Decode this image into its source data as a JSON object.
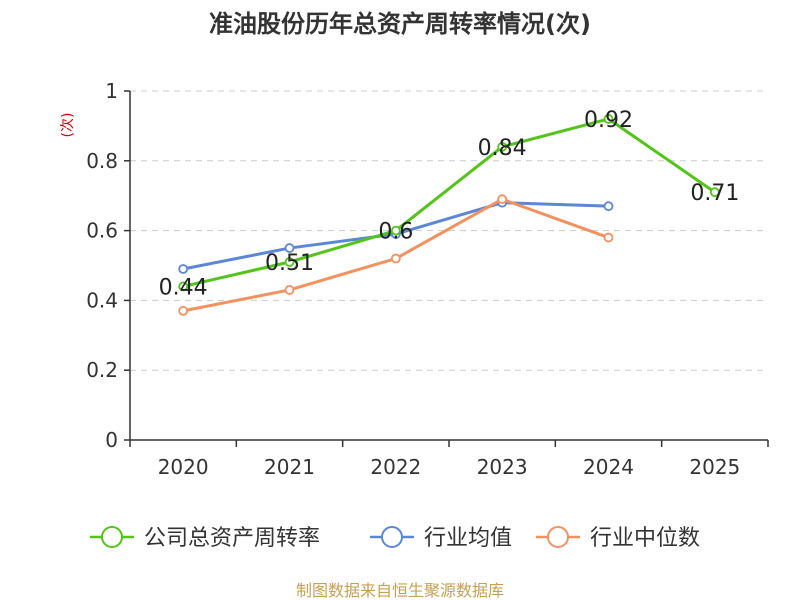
{
  "colors": {
    "company": "#52c41a",
    "industry_avg": "#5b87d6",
    "industry_median": "#f4915f",
    "grid": "#cccccc",
    "ylabel": "#cc0000",
    "source": "#c8a150"
  },
  "chart_data": {
    "type": "line",
    "title": "准油股份历年总资产周转率情况(次)",
    "ylabel": "(次)",
    "xlabel": "",
    "categories": [
      "2020",
      "2021",
      "2022",
      "2023",
      "2024",
      "2025"
    ],
    "ylim": [
      0,
      1
    ],
    "yticks": [
      "0",
      "0.2",
      "0.4",
      "0.6",
      "0.8",
      "1"
    ],
    "ytick_values": [
      0,
      0.2,
      0.4,
      0.6,
      0.8,
      1
    ],
    "grid": true,
    "legend_position": "bottom",
    "series": [
      {
        "name": "公司总资产周转率",
        "color_key": "company",
        "values": [
          0.44,
          0.51,
          0.6,
          0.84,
          0.92,
          0.71
        ],
        "labels": [
          "0.44",
          "0.51",
          "0.6",
          "0.84",
          "0.92",
          "0.71"
        ],
        "show_labels": true
      },
      {
        "name": "行业均值",
        "color_key": "industry_avg",
        "values": [
          0.49,
          0.55,
          0.59,
          0.68,
          0.67,
          null
        ],
        "show_labels": false
      },
      {
        "name": "行业中位数",
        "color_key": "industry_median",
        "values": [
          0.37,
          0.43,
          0.52,
          0.69,
          0.58,
          null
        ],
        "show_labels": false
      }
    ]
  },
  "source": "制图数据来自恒生聚源数据库"
}
